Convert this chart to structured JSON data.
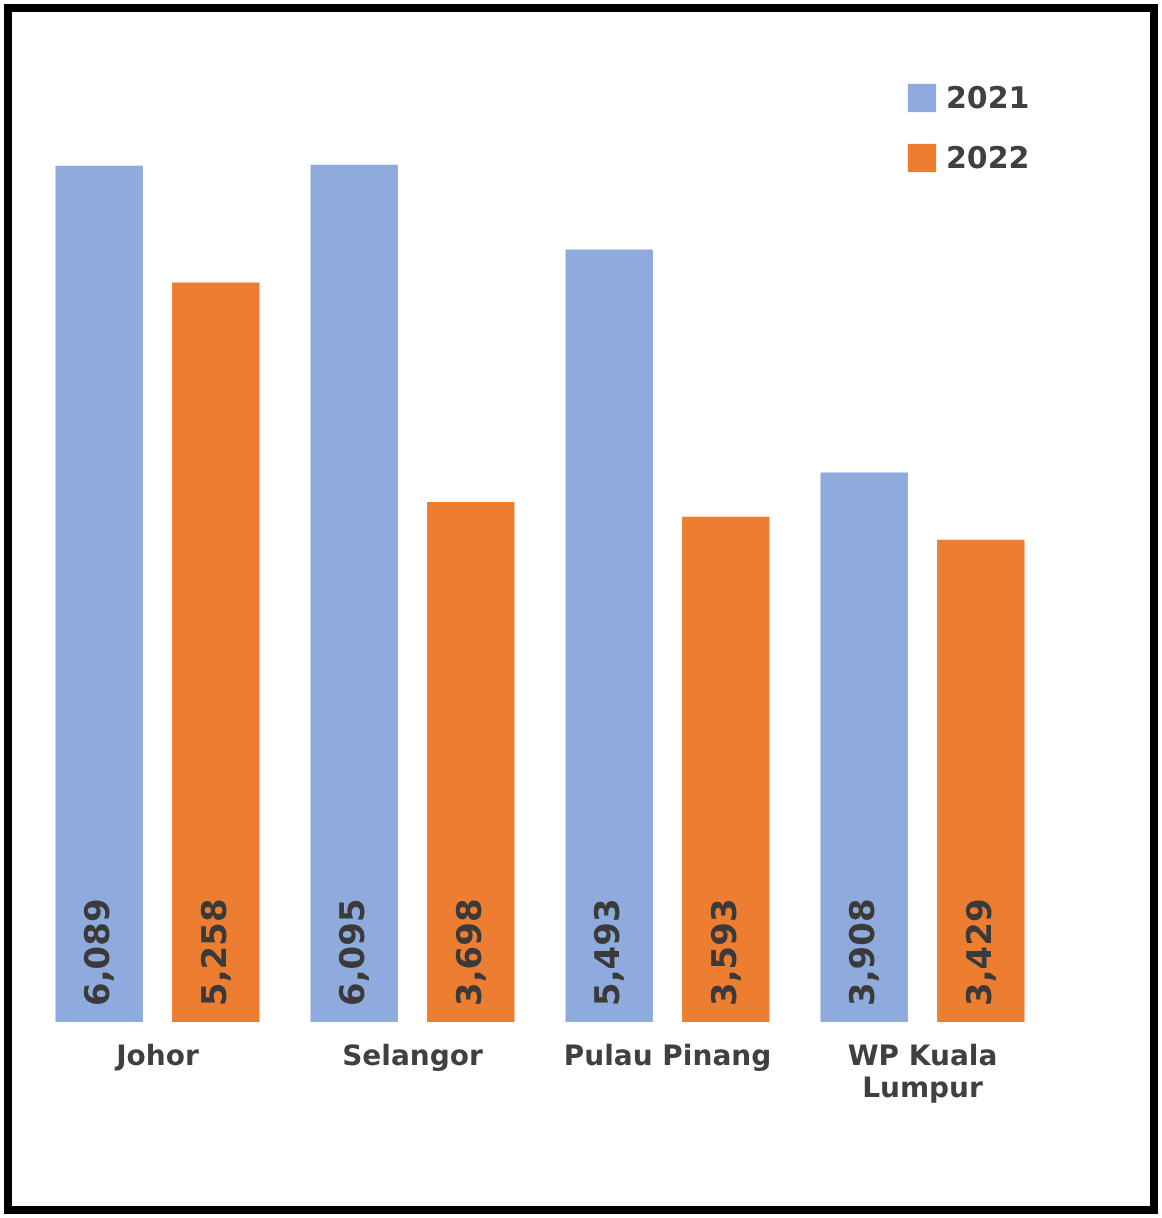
{
  "chart_data": {
    "type": "bar",
    "categories": [
      "Johor",
      "Selangor",
      "Pulau Pinang",
      "WP Kuala Lumpur"
    ],
    "series": [
      {
        "name": "2021",
        "color": "#8faadc",
        "values": [
          6089,
          6095,
          5493,
          3908
        ],
        "value_labels": [
          "6,089",
          "6,095",
          "5,493",
          "3,908"
        ]
      },
      {
        "name": "2022",
        "color": "#ed7d31",
        "values": [
          5258,
          3698,
          3593,
          3429
        ],
        "value_labels": [
          "5,258",
          "3,698",
          "3,593",
          "3,429"
        ]
      }
    ],
    "legend": "top right",
    "grid": false
  }
}
